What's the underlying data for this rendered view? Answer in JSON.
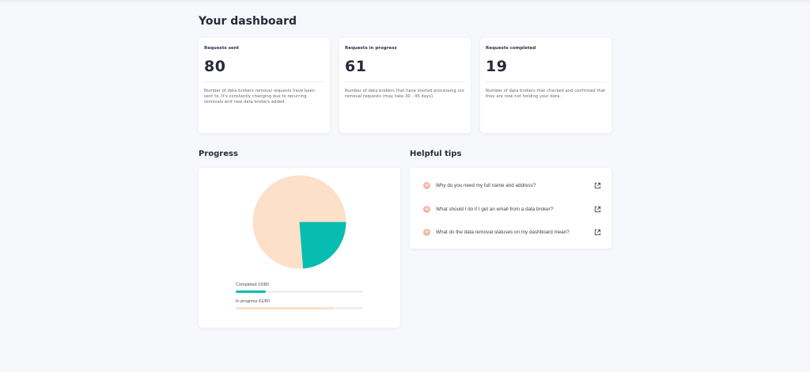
{
  "page": {
    "title": "Your dashboard"
  },
  "stats": [
    {
      "label": "Requests sent",
      "value": "80",
      "description": "Number of data brokers removal requests have been sent to. It's constantly changing due to recurring removals and new data brokers added."
    },
    {
      "label": "Requests in progress",
      "value": "61",
      "description": "Number of data brokers that have started processing our removal requests (may take 30 - 45 days)."
    },
    {
      "label": "Requests completed",
      "value": "19",
      "description": "Number of data brokers that checked and confirmed that they are now not holding your data."
    }
  ],
  "progress": {
    "title": "Progress",
    "total": 80,
    "completed": 19,
    "in_progress": 61,
    "completed_label": "Completed 19/80",
    "in_progress_label": "In progress 61/80",
    "colors": {
      "completed": "#07bcb0",
      "in_progress": "#fde0ca"
    }
  },
  "tips": {
    "title": "Helpful tips",
    "items": [
      {
        "text": "Why do you need my full name and address?",
        "icon": "plus-icon",
        "action_icon": "open-link-icon"
      },
      {
        "text": "What should I do if I get an email from a data broker?",
        "icon": "plus-icon",
        "action_icon": "open-link-icon"
      },
      {
        "text": "What do the data removal statuses on my dashboard mean?",
        "icon": "plus-icon",
        "action_icon": "open-link-icon"
      }
    ]
  }
}
